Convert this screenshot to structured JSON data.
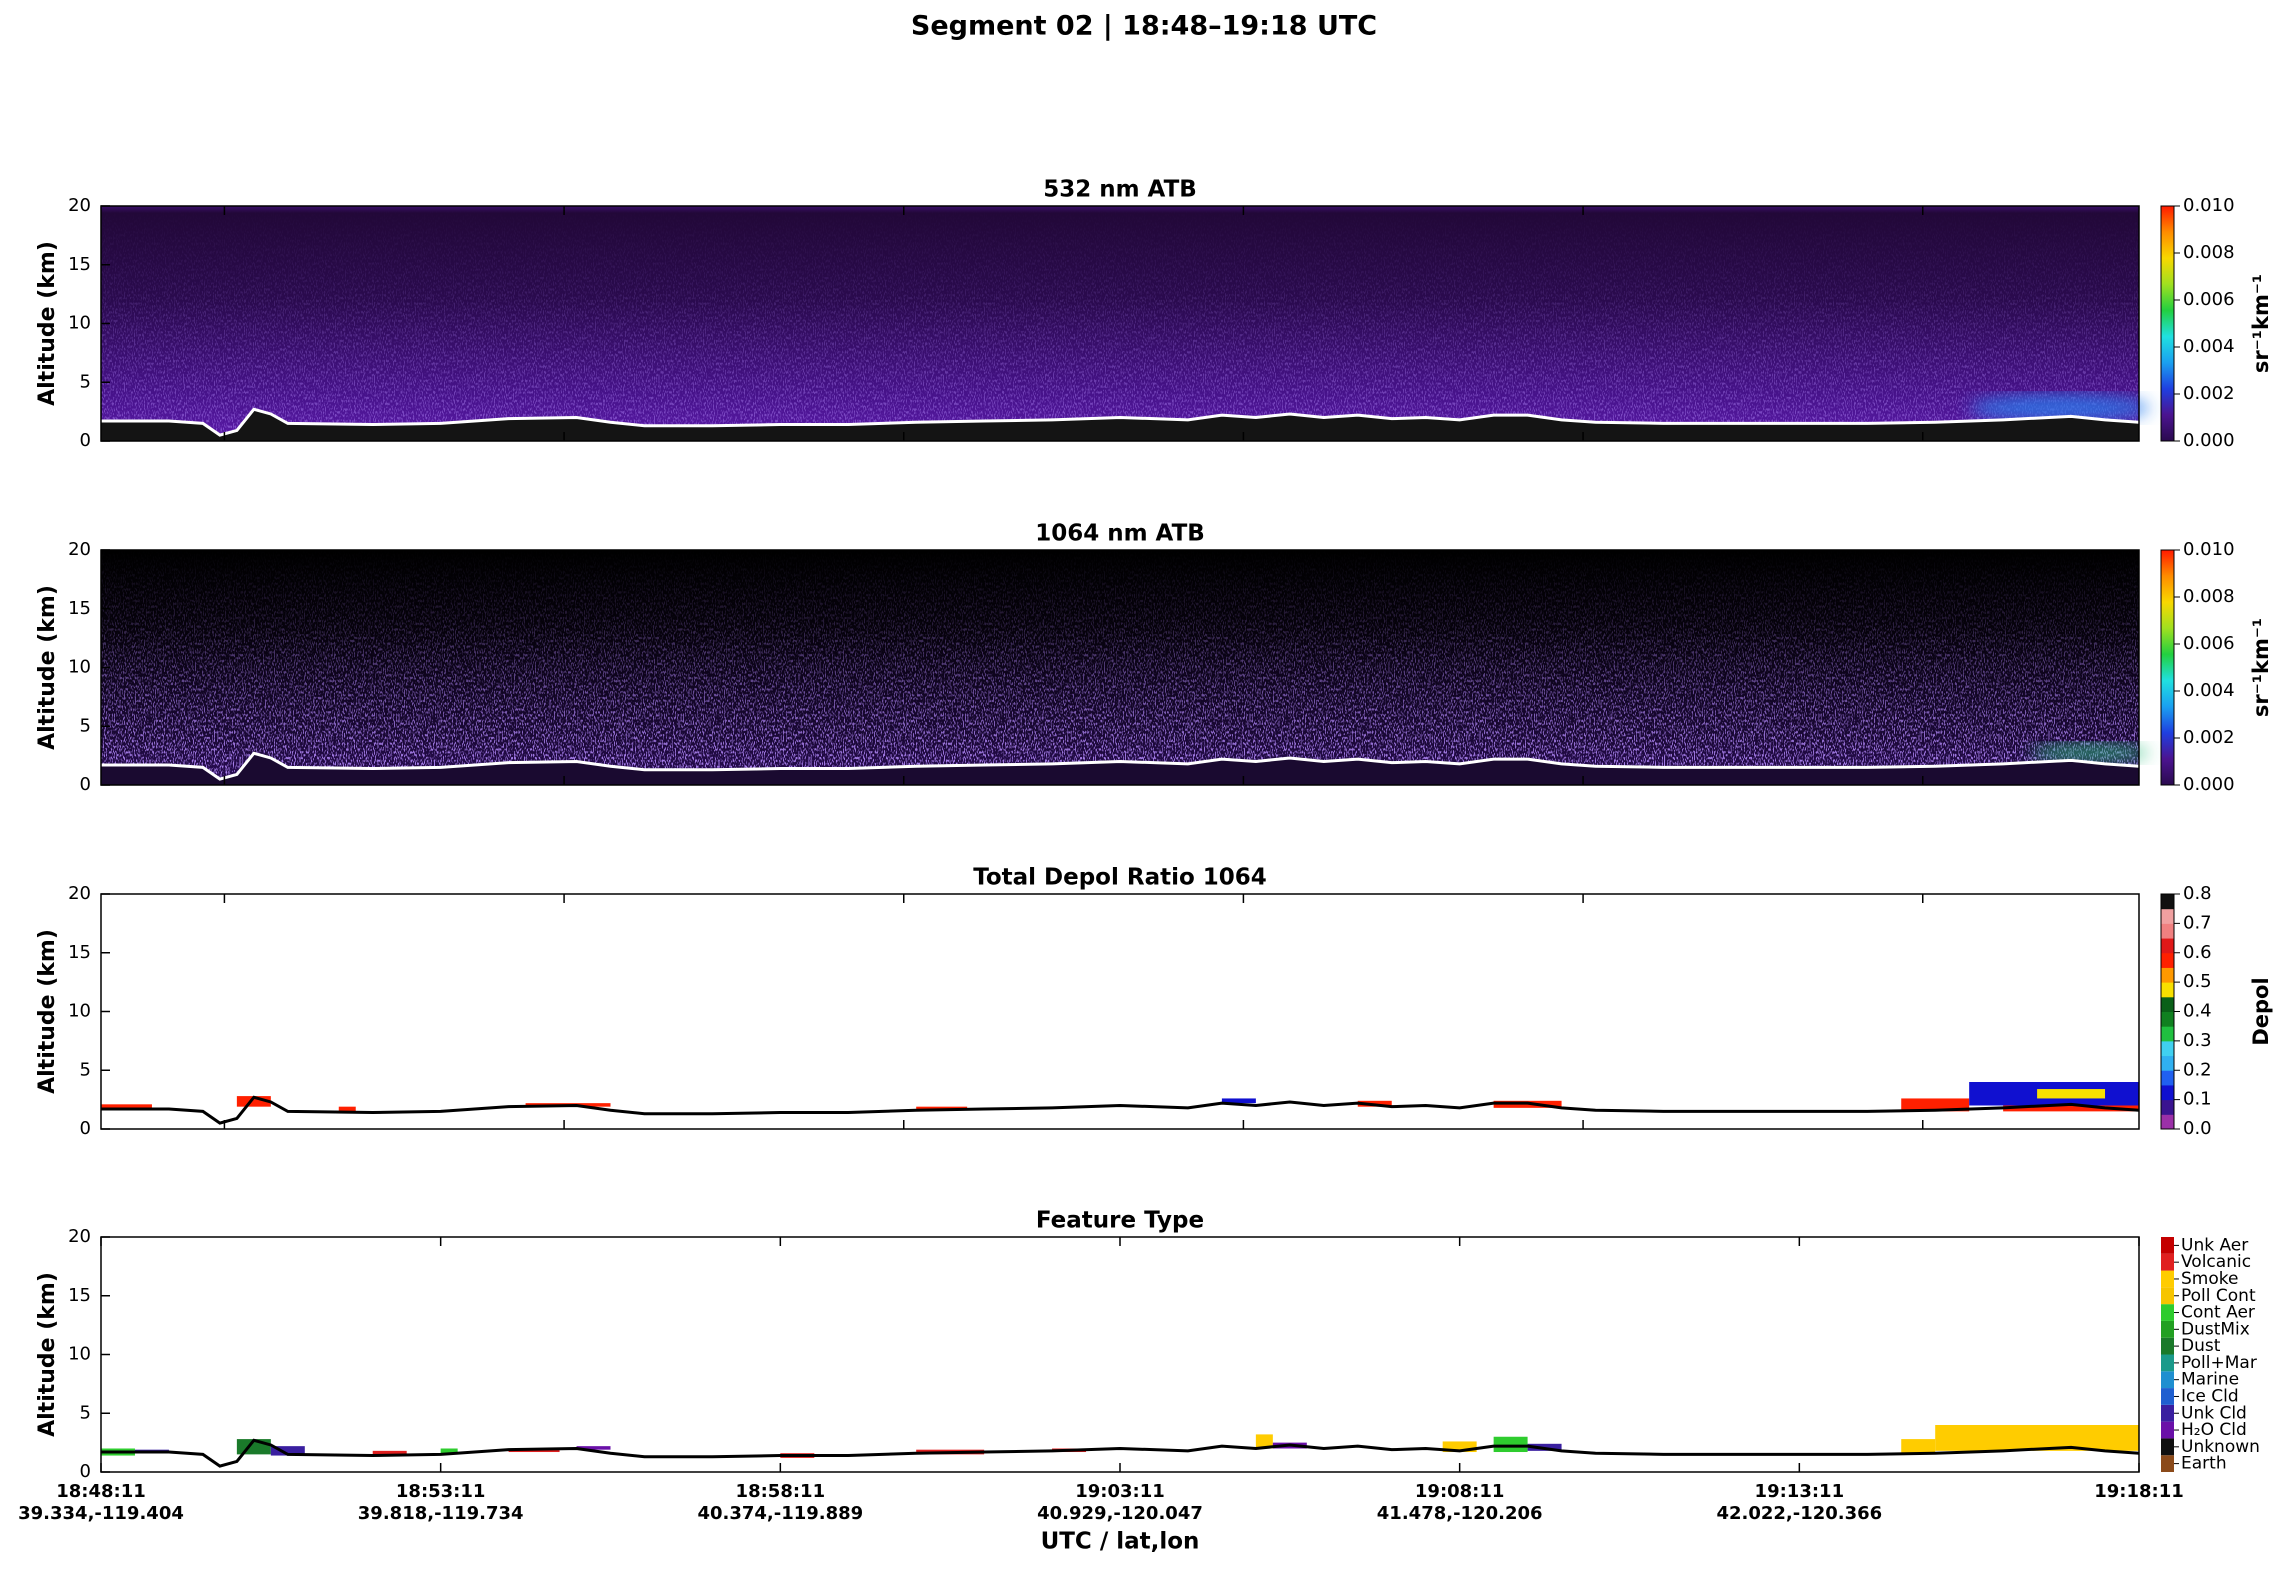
{
  "title": "Segment 02  |  18:48–19:18 UTC",
  "chart_data": [
    {
      "type": "curtain",
      "title": "532 nm ATB",
      "ylabel": "Altitude (km)",
      "ylim": [
        0,
        20
      ],
      "yticks": [
        0,
        5,
        10,
        15,
        20
      ],
      "xlim": [
        "18:48:11",
        "19:18:11"
      ],
      "xticks": [
        "18:50:00",
        "18:55:00",
        "19:00:00",
        "19:05:00",
        "19:10:00",
        "19:15:00"
      ],
      "xtick_labels": false,
      "surface": {
        "color": "#ffffff",
        "x": [
          "18:48:11",
          "18:49:11",
          "18:49:41",
          "18:49:56",
          "18:50:11",
          "18:50:26",
          "18:50:41",
          "18:50:56",
          "18:52:11",
          "18:53:11",
          "18:54:11",
          "18:55:11",
          "18:55:41",
          "18:56:11",
          "18:57:11",
          "18:58:11",
          "18:59:11",
          "19:00:11",
          "19:01:11",
          "19:02:11",
          "19:03:11",
          "19:04:11",
          "19:04:41",
          "19:05:11",
          "19:05:41",
          "19:06:11",
          "19:06:41",
          "19:07:11",
          "19:07:41",
          "19:08:11",
          "19:08:41",
          "19:09:11",
          "19:09:41",
          "19:10:11",
          "19:11:11",
          "19:12:11",
          "19:13:11",
          "19:14:11",
          "19:15:11",
          "19:16:11",
          "19:17:11",
          "19:17:41",
          "19:18:11"
        ],
        "values": [
          1.7,
          1.7,
          1.5,
          0.5,
          0.9,
          2.7,
          2.3,
          1.5,
          1.4,
          1.5,
          1.9,
          2.0,
          1.6,
          1.3,
          1.3,
          1.4,
          1.4,
          1.6,
          1.7,
          1.8,
          2.0,
          1.8,
          2.2,
          2.0,
          2.3,
          2.0,
          2.2,
          1.9,
          2.0,
          1.8,
          2.2,
          2.2,
          1.8,
          1.6,
          1.5,
          1.5,
          1.5,
          1.5,
          1.6,
          1.8,
          2.1,
          1.8,
          1.6
        ]
      },
      "ground_color": "#141414",
      "colorbar": {
        "label": "sr⁻¹km⁻¹",
        "lim": [
          0,
          0.01
        ],
        "ticks": [
          {
            "value": 0,
            "label": "0.000"
          },
          {
            "value": 0.002,
            "label": "0.002"
          },
          {
            "value": 0.004,
            "label": "0.004"
          },
          {
            "value": 0.006,
            "label": "0.006"
          },
          {
            "value": 0.008,
            "label": "0.008"
          },
          {
            "value": 0.01,
            "label": "0.010"
          }
        ],
        "colormap": [
          "#2a0a4e",
          "#4b1490",
          "#1f3fe0",
          "#1aa0f0",
          "#20e0e0",
          "#22d040",
          "#a0e020",
          "#f8d800",
          "#ff8c00",
          "#ff1a00"
        ]
      }
    },
    {
      "type": "curtain",
      "title": "1064 nm ATB",
      "ylabel": "Altitude (km)",
      "ylim": [
        0,
        20
      ],
      "yticks": [
        0,
        5,
        10,
        15,
        20
      ],
      "xlim": [
        "18:48:11",
        "19:18:11"
      ],
      "xticks": [
        "18:50:00",
        "18:55:00",
        "19:00:00",
        "19:05:00",
        "19:10:00",
        "19:15:00"
      ],
      "xtick_labels": false,
      "surface": {
        "color": "#ffffff",
        "x": [
          "18:48:11",
          "18:49:11",
          "18:49:41",
          "18:49:56",
          "18:50:11",
          "18:50:26",
          "18:50:41",
          "18:50:56",
          "18:52:11",
          "18:53:11",
          "18:54:11",
          "18:55:11",
          "18:55:41",
          "18:56:11",
          "18:57:11",
          "18:58:11",
          "18:59:11",
          "19:00:11",
          "19:01:11",
          "19:02:11",
          "19:03:11",
          "19:04:11",
          "19:04:41",
          "19:05:11",
          "19:05:41",
          "19:06:11",
          "19:06:41",
          "19:07:11",
          "19:07:41",
          "19:08:11",
          "19:08:41",
          "19:09:11",
          "19:09:41",
          "19:10:11",
          "19:11:11",
          "19:12:11",
          "19:13:11",
          "19:14:11",
          "19:15:11",
          "19:16:11",
          "19:17:11",
          "19:17:41",
          "19:18:11"
        ],
        "values": [
          1.7,
          1.7,
          1.5,
          0.5,
          0.9,
          2.7,
          2.3,
          1.5,
          1.4,
          1.5,
          1.9,
          2.0,
          1.6,
          1.3,
          1.3,
          1.4,
          1.4,
          1.6,
          1.7,
          1.8,
          2.0,
          1.8,
          2.2,
          2.0,
          2.3,
          2.0,
          2.2,
          1.9,
          2.0,
          1.8,
          2.2,
          2.2,
          1.8,
          1.6,
          1.5,
          1.5,
          1.5,
          1.5,
          1.6,
          1.8,
          2.1,
          1.8,
          1.6
        ]
      },
      "ground_color": "#1a0a30",
      "colorbar": {
        "label": "sr⁻¹km⁻¹",
        "lim": [
          0,
          0.01
        ],
        "ticks": [
          {
            "value": 0,
            "label": "0.000"
          },
          {
            "value": 0.002,
            "label": "0.002"
          },
          {
            "value": 0.004,
            "label": "0.004"
          },
          {
            "value": 0.006,
            "label": "0.006"
          },
          {
            "value": 0.008,
            "label": "0.008"
          },
          {
            "value": 0.01,
            "label": "0.010"
          }
        ],
        "colormap": [
          "#2a0a4e",
          "#4b1490",
          "#1f3fe0",
          "#1aa0f0",
          "#20e0e0",
          "#22d040",
          "#a0e020",
          "#f8d800",
          "#ff8c00",
          "#ff1a00"
        ]
      }
    },
    {
      "type": "curtain",
      "title": "Total Depol Ratio 1064",
      "ylabel": "Altitude (km)",
      "ylim": [
        0,
        20
      ],
      "yticks": [
        0,
        5,
        10,
        15,
        20
      ],
      "xlim": [
        "18:48:11",
        "19:18:11"
      ],
      "xticks": [
        "18:50:00",
        "18:55:00",
        "19:00:00",
        "19:05:00",
        "19:10:00",
        "19:15:00"
      ],
      "xtick_labels": false,
      "surface": {
        "color": "#000000",
        "x": [
          "18:48:11",
          "18:49:11",
          "18:49:41",
          "18:49:56",
          "18:50:11",
          "18:50:26",
          "18:50:41",
          "18:50:56",
          "18:52:11",
          "18:53:11",
          "18:54:11",
          "18:55:11",
          "18:55:41",
          "18:56:11",
          "18:57:11",
          "18:58:11",
          "18:59:11",
          "19:00:11",
          "19:01:11",
          "19:02:11",
          "19:03:11",
          "19:04:11",
          "19:04:41",
          "19:05:11",
          "19:05:41",
          "19:06:11",
          "19:06:41",
          "19:07:11",
          "19:07:41",
          "19:08:11",
          "19:08:41",
          "19:09:11",
          "19:09:41",
          "19:10:11",
          "19:11:11",
          "19:12:11",
          "19:13:11",
          "19:14:11",
          "19:15:11",
          "19:16:11",
          "19:17:11",
          "19:17:41",
          "19:18:11"
        ],
        "values": [
          1.7,
          1.7,
          1.5,
          0.5,
          0.9,
          2.7,
          2.3,
          1.5,
          1.4,
          1.5,
          1.9,
          2.0,
          1.6,
          1.3,
          1.3,
          1.4,
          1.4,
          1.6,
          1.7,
          1.8,
          2.0,
          1.8,
          2.2,
          2.0,
          2.3,
          2.0,
          2.2,
          1.9,
          2.0,
          1.8,
          2.2,
          2.2,
          1.8,
          1.6,
          1.5,
          1.5,
          1.5,
          1.5,
          1.6,
          1.8,
          2.1,
          1.8,
          1.6
        ]
      },
      "features": [
        {
          "start": "18:48:11",
          "end": "18:48:56",
          "bottom": 1.6,
          "top": 2.1,
          "value": 0.55
        },
        {
          "start": "18:50:11",
          "end": "18:50:41",
          "bottom": 1.9,
          "top": 2.8,
          "value": 0.58
        },
        {
          "start": "18:51:41",
          "end": "18:51:56",
          "bottom": 1.5,
          "top": 1.9,
          "value": 0.55
        },
        {
          "start": "18:54:26",
          "end": "18:55:41",
          "bottom": 1.9,
          "top": 2.2,
          "value": 0.55
        },
        {
          "start": "19:00:11",
          "end": "19:00:56",
          "bottom": 1.6,
          "top": 1.9,
          "value": 0.55
        },
        {
          "start": "19:04:41",
          "end": "19:05:11",
          "bottom": 2.2,
          "top": 2.6,
          "value": 0.1
        },
        {
          "start": "19:06:41",
          "end": "19:07:11",
          "bottom": 1.9,
          "top": 2.4,
          "value": 0.6
        },
        {
          "start": "19:08:41",
          "end": "19:09:41",
          "bottom": 1.8,
          "top": 2.4,
          "value": 0.55
        },
        {
          "start": "19:14:41",
          "end": "19:15:41",
          "bottom": 1.5,
          "top": 2.6,
          "value": 0.55
        },
        {
          "start": "19:15:41",
          "end": "19:18:11",
          "bottom": 2.0,
          "top": 4.0,
          "value": 0.15
        },
        {
          "start": "19:16:11",
          "end": "19:18:11",
          "bottom": 1.5,
          "top": 2.0,
          "value": 0.6
        },
        {
          "start": "19:16:41",
          "end": "19:17:41",
          "bottom": 2.6,
          "top": 3.4,
          "value": 0.45
        }
      ],
      "colorbar": {
        "label": "Depol",
        "lim": [
          0,
          0.8
        ],
        "ticks": [
          {
            "value": 0,
            "label": "0.0"
          },
          0.1,
          0.2,
          0.3,
          0.4,
          0.5,
          0.6,
          0.7,
          0.8
        ],
        "colors": [
          "#9b30a8",
          "#3a1490",
          "#1010d0",
          "#2060f0",
          "#30b0f0",
          "#40d0f0",
          "#20c040",
          "#108020",
          "#0a6018",
          "#f8e000",
          "#ff9900",
          "#ff2000",
          "#e01818",
          "#f08080",
          "#f0a0a0",
          "#101010"
        ]
      }
    },
    {
      "type": "curtain",
      "title": "Feature Type",
      "ylabel": "Altitude (km)",
      "ylim": [
        0,
        20
      ],
      "yticks": [
        0,
        5,
        10,
        15,
        20
      ],
      "xlim": [
        "18:48:11",
        "19:18:11"
      ],
      "xticks": [
        "18:48:11",
        "18:53:11",
        "18:58:11",
        "19:03:11",
        "19:08:11",
        "19:13:11",
        "19:18:11"
      ],
      "xtick_labels": true,
      "xtick_coords": [
        "39.334,-119.404",
        "39.818,-119.734",
        "40.374,-119.889",
        "40.929,-120.047",
        "41.478,-120.206",
        "42.022,-120.366",
        ""
      ],
      "xlabel": "UTC / lat,lon",
      "surface": {
        "color": "#000000",
        "x": [
          "18:48:11",
          "18:49:11",
          "18:49:41",
          "18:49:56",
          "18:50:11",
          "18:50:26",
          "18:50:41",
          "18:50:56",
          "18:52:11",
          "18:53:11",
          "18:54:11",
          "18:55:11",
          "18:55:41",
          "18:56:11",
          "18:57:11",
          "18:58:11",
          "18:59:11",
          "19:00:11",
          "19:01:11",
          "19:02:11",
          "19:03:11",
          "19:04:11",
          "19:04:41",
          "19:05:11",
          "19:05:41",
          "19:06:11",
          "19:06:41",
          "19:07:11",
          "19:07:41",
          "19:08:11",
          "19:08:41",
          "19:09:11",
          "19:09:41",
          "19:10:11",
          "19:11:11",
          "19:12:11",
          "19:13:11",
          "19:14:11",
          "19:15:11",
          "19:16:11",
          "19:17:11",
          "19:17:41",
          "19:18:11"
        ],
        "values": [
          1.7,
          1.7,
          1.5,
          0.5,
          0.9,
          2.7,
          2.3,
          1.5,
          1.4,
          1.5,
          1.9,
          2.0,
          1.6,
          1.3,
          1.3,
          1.4,
          1.4,
          1.6,
          1.7,
          1.8,
          2.0,
          1.8,
          2.2,
          2.0,
          2.3,
          2.0,
          2.2,
          1.9,
          2.0,
          1.8,
          2.2,
          2.2,
          1.8,
          1.6,
          1.5,
          1.5,
          1.5,
          1.5,
          1.6,
          1.8,
          2.1,
          1.8,
          1.6
        ]
      },
      "features": [
        {
          "start": "18:48:11",
          "end": "18:48:41",
          "bottom": 1.4,
          "top": 2.0,
          "type": "Cont Aer"
        },
        {
          "start": "18:48:41",
          "end": "18:49:11",
          "bottom": 1.6,
          "top": 1.9,
          "type": "Unk Cld"
        },
        {
          "start": "18:50:11",
          "end": "18:50:41",
          "bottom": 1.5,
          "top": 2.8,
          "type": "Dust"
        },
        {
          "start": "18:50:41",
          "end": "18:51:11",
          "bottom": 1.4,
          "top": 2.2,
          "type": "Unk Cld"
        },
        {
          "start": "18:52:11",
          "end": "18:52:41",
          "bottom": 1.4,
          "top": 1.8,
          "type": "Volcanic"
        },
        {
          "start": "18:53:11",
          "end": "18:53:26",
          "bottom": 1.5,
          "top": 2.0,
          "type": "Cont Aer"
        },
        {
          "start": "18:54:11",
          "end": "18:54:56",
          "bottom": 1.7,
          "top": 2.0,
          "type": "Volcanic"
        },
        {
          "start": "18:55:11",
          "end": "18:55:41",
          "bottom": 1.9,
          "top": 2.2,
          "type": "H₂O Cld"
        },
        {
          "start": "18:58:11",
          "end": "18:58:41",
          "bottom": 1.2,
          "top": 1.6,
          "type": "Volcanic"
        },
        {
          "start": "19:00:11",
          "end": "19:01:11",
          "bottom": 1.5,
          "top": 1.9,
          "type": "Volcanic"
        },
        {
          "start": "19:02:11",
          "end": "19:02:41",
          "bottom": 1.7,
          "top": 2.0,
          "type": "Volcanic"
        },
        {
          "start": "19:05:11",
          "end": "19:05:26",
          "bottom": 2.0,
          "top": 3.2,
          "type": "Smoke"
        },
        {
          "start": "19:05:26",
          "end": "19:05:56",
          "bottom": 2.0,
          "top": 2.5,
          "type": "H₂O Cld"
        },
        {
          "start": "19:07:56",
          "end": "19:08:26",
          "bottom": 1.7,
          "top": 2.6,
          "type": "Smoke"
        },
        {
          "start": "19:08:41",
          "end": "19:09:11",
          "bottom": 1.7,
          "top": 3.0,
          "type": "Cont Aer"
        },
        {
          "start": "19:09:11",
          "end": "19:09:41",
          "bottom": 1.8,
          "top": 2.4,
          "type": "Unk Cld"
        },
        {
          "start": "19:14:41",
          "end": "19:15:11",
          "bottom": 1.5,
          "top": 2.8,
          "type": "Smoke"
        },
        {
          "start": "19:15:11",
          "end": "19:18:11",
          "bottom": 1.8,
          "top": 4.0,
          "type": "Smoke"
        }
      ],
      "colorbar": {
        "categories": [
          "Earth",
          "Unknown",
          "H₂O Cld",
          "Unk Cld",
          "Ice Cld",
          "Marine",
          "Poll+Mar",
          "Dust",
          "DustMix",
          "Cont Aer",
          "Poll Cont",
          "Smoke",
          "Volcanic",
          "Unk Aer"
        ],
        "colors": [
          "#8b4a1a",
          "#101010",
          "#6a10a8",
          "#3a1fa0",
          "#1f5fd0",
          "#1f8fd0",
          "#1a9a8a",
          "#1a7a2a",
          "#22a022",
          "#2ecc2e",
          "#f6c500",
          "#ffcc00",
          "#e02020",
          "#c40000"
        ]
      }
    }
  ]
}
